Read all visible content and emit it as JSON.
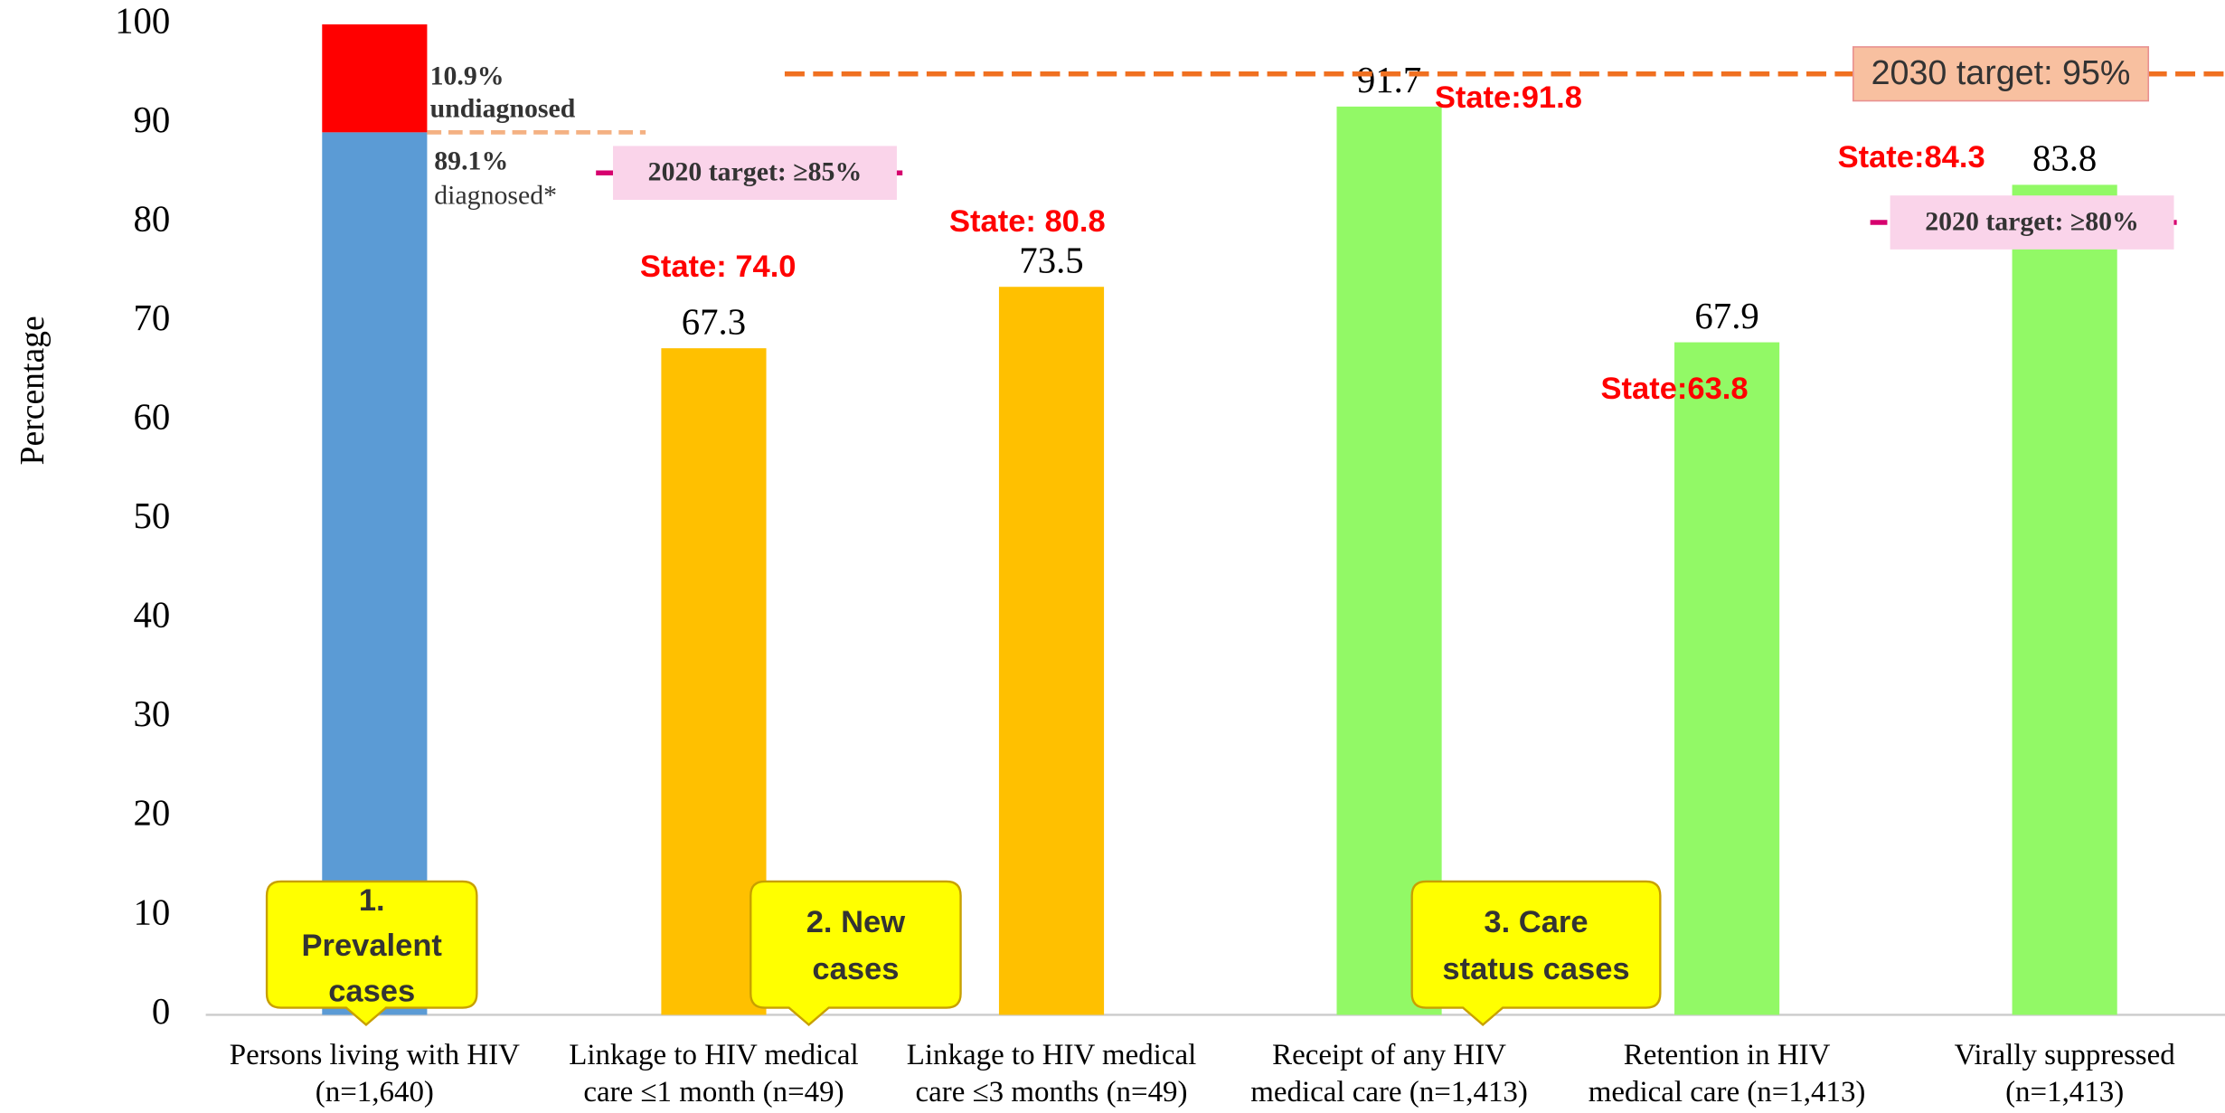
{
  "chart_data": {
    "type": "bar",
    "y_label": "Percentage",
    "categories": [
      [
        "Persons living with HIV",
        "(n=1,640)"
      ],
      [
        "Linkage to HIV medical",
        "care ≤1 month (n=49)"
      ],
      [
        "Linkage to HIV medical",
        "care ≤3 months (n=49)"
      ],
      [
        "Receipt of any HIV",
        "medical care (n=1,413)"
      ],
      [
        "Retention in HIV",
        "medical care (n=1,413)"
      ],
      [
        "Virally suppressed",
        "(n=1,413)"
      ]
    ],
    "series": [
      {
        "name": "diagnosed*",
        "colors": [
          "#5b9bd5",
          "#ffc000",
          "#ffc000",
          "#92f966",
          "#92f966",
          "#92f966"
        ],
        "values": [
          89.1,
          67.3,
          73.5,
          91.7,
          67.9,
          83.8
        ],
        "value_labels": [
          "89.1%",
          "67.3",
          "73.5",
          "91.7",
          "67.9",
          "83.8"
        ]
      },
      {
        "name": "undiagnosed",
        "color": "#ff0000",
        "values": [
          10.9,
          null,
          null,
          null,
          null,
          null
        ],
        "value_labels": [
          "10.9%",
          null,
          null,
          null,
          null,
          null
        ]
      }
    ],
    "state_labels": [
      null,
      "State: 74.0",
      "State: 80.8",
      "State:91.8",
      "State:63.8",
      "State:84.3"
    ],
    "targets": [
      {
        "label": "2020 target: ≥85%",
        "value": 85,
        "color": "#d6006e"
      },
      {
        "label": "2020 target: ≥80%",
        "value": 80,
        "color": "#d6006e"
      },
      {
        "label": "2030 target: 95%",
        "value": 95,
        "color": "#f07020"
      }
    ],
    "groups": [
      [
        "1.",
        "Prevalent",
        "cases"
      ],
      [
        "2. New",
        "cases"
      ],
      [
        "3. Care",
        "status cases"
      ]
    ],
    "ylim": [
      0,
      100
    ],
    "yticks": [
      0,
      10,
      20,
      30,
      40,
      50,
      60,
      70,
      80,
      90,
      100
    ]
  }
}
